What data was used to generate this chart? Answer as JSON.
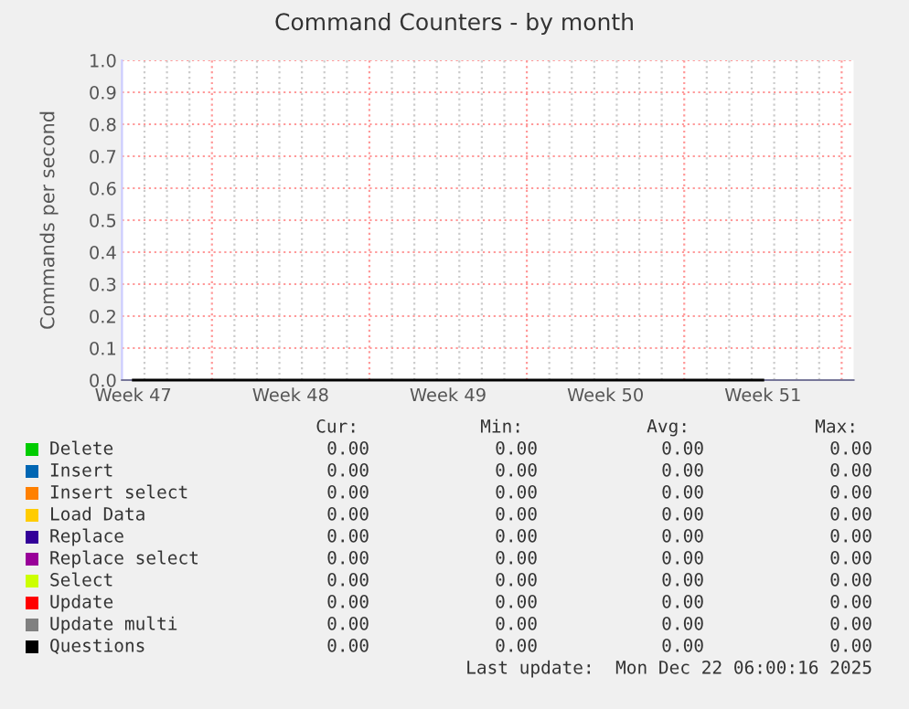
{
  "chart_data": {
    "type": "line",
    "title": "Command Counters - by month",
    "ylabel": "Commands per second",
    "categories": [
      "Week 47",
      "Week 48",
      "Week 49",
      "Week 50",
      "Week 51"
    ],
    "ylim": [
      0,
      1.0
    ],
    "yticks": [
      {
        "value": 0,
        "label": "0.0"
      },
      {
        "value": 0.1,
        "label": "0.1"
      },
      {
        "value": 0.2,
        "label": "0.2"
      },
      {
        "value": 0.3,
        "label": "0.3"
      },
      {
        "value": 0.4,
        "label": "0.4"
      },
      {
        "value": 0.5,
        "label": "0.5"
      },
      {
        "value": 0.6,
        "label": "0.6"
      },
      {
        "value": 0.7,
        "label": "0.7"
      },
      {
        "value": 0.8,
        "label": "0.8"
      },
      {
        "value": 0.9,
        "label": "0.9"
      },
      {
        "value": 1.0,
        "label": "1.0"
      }
    ],
    "grid": true,
    "legend": "bottom",
    "series": [
      {
        "name": "Delete",
        "color": "#00cc00",
        "values": [
          null,
          null,
          null,
          null,
          null
        ]
      },
      {
        "name": "Insert",
        "color": "#0066b3",
        "values": [
          null,
          null,
          null,
          null,
          null
        ]
      },
      {
        "name": "Insert select",
        "color": "#ff8000",
        "values": [
          null,
          null,
          null,
          null,
          null
        ]
      },
      {
        "name": "Load Data",
        "color": "#ffcc00",
        "values": [
          null,
          null,
          null,
          null,
          null
        ]
      },
      {
        "name": "Replace",
        "color": "#330099",
        "values": [
          null,
          null,
          null,
          null,
          null
        ]
      },
      {
        "name": "Replace select",
        "color": "#990099",
        "values": [
          null,
          null,
          null,
          null,
          null
        ]
      },
      {
        "name": "Select",
        "color": "#ccff00",
        "values": [
          null,
          null,
          null,
          null,
          null
        ]
      },
      {
        "name": "Update",
        "color": "#ff0000",
        "values": [
          null,
          null,
          null,
          null,
          null
        ]
      },
      {
        "name": "Update multi",
        "color": "#808080",
        "values": [
          null,
          null,
          null,
          null,
          null
        ]
      },
      {
        "name": "Questions",
        "color": "#000000",
        "values": [
          0,
          0,
          0,
          0,
          0
        ]
      }
    ],
    "annotations": [
      "Cur:",
      "Min:",
      "Avg:",
      "Max:",
      "0.00",
      "0.00",
      "0.00",
      "0.00",
      "0.00",
      "0.00",
      "0.00",
      "0.00",
      "0.00",
      "0.00",
      "0.00",
      "0.00",
      "0.00",
      "0.00",
      "0.00",
      "0.00",
      "0.00",
      "0.00",
      "0.00",
      "0.00",
      "0.00",
      "0.00",
      "0.00",
      "0.00",
      "0.00",
      "0.00",
      "0.00",
      "0.00",
      "0.00",
      "0.00",
      "0.00",
      "0.00",
      "0.00",
      "0.00",
      "0.00",
      "0.00",
      "0.00",
      "0.00",
      "0.00",
      "0.00",
      "Last update:  Mon Dec 22 06:00:16 2025"
    ]
  }
}
